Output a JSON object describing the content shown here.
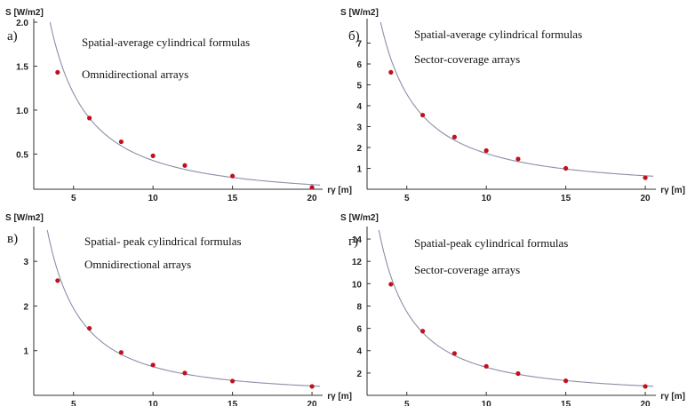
{
  "chart_data": [
    {
      "type": "line",
      "panel_label": "а)",
      "ylabel": "S [W/m2]",
      "xlabel": "rγ [m]",
      "annotations": [
        "Spatial-average cylindrical formulas",
        "Omnidirectional arrays"
      ],
      "xlim": [
        2.5,
        20.5
      ],
      "ylim": [
        0.1,
        2.0
      ],
      "xticks": [
        5,
        10,
        15,
        20
      ],
      "yticks": [
        0.5,
        1.0,
        1.5,
        2.0
      ],
      "ytick_labels": [
        "0.5",
        "1.0",
        "1.5",
        "2.0"
      ],
      "series": [
        {
          "x": [
            4,
            6,
            8,
            10,
            12,
            15,
            20
          ],
          "y": [
            1.43,
            0.91,
            0.64,
            0.48,
            0.37,
            0.25,
            0.12
          ]
        }
      ]
    },
    {
      "type": "line",
      "panel_label": "б)",
      "ylabel": "S [W/m2]",
      "xlabel": "rγ [m]",
      "annotations": [
        "Spatial-average cylindrical formulas",
        "Sector-coverage arrays"
      ],
      "xlim": [
        2.5,
        20.5
      ],
      "ylim": [
        0,
        8
      ],
      "xticks": [
        5,
        10,
        15,
        20
      ],
      "yticks": [
        1,
        2,
        3,
        4,
        5,
        6,
        7
      ],
      "ytick_labels": [
        "1",
        "2",
        "3",
        "4",
        "5",
        "6",
        "7"
      ],
      "series": [
        {
          "x": [
            4,
            6,
            8,
            10,
            12,
            15,
            20
          ],
          "y": [
            5.6,
            3.55,
            2.5,
            1.85,
            1.45,
            1.0,
            0.55
          ]
        }
      ]
    },
    {
      "type": "line",
      "panel_label": "в)",
      "ylabel": "S [W/m2]",
      "xlabel": "rγ [m]",
      "annotations": [
        "Spatial- peak cylindrical formulas",
        "Omnidirectional arrays"
      ],
      "xlim": [
        2.5,
        20.5
      ],
      "ylim": [
        0,
        3.7
      ],
      "xticks": [
        5,
        10,
        15,
        20
      ],
      "yticks": [
        1,
        2,
        3
      ],
      "ytick_labels": [
        "1",
        "2",
        "3"
      ],
      "series": [
        {
          "x": [
            4,
            6,
            8,
            10,
            12,
            15,
            20
          ],
          "y": [
            2.57,
            1.5,
            0.96,
            0.68,
            0.5,
            0.32,
            0.2
          ]
        }
      ]
    },
    {
      "type": "line",
      "panel_label": "г)",
      "ylabel": "S [W/m2]",
      "xlabel": "rγ [m]",
      "annotations": [
        "Spatial-peak cylindrical formulas",
        "Sector-coverage arrays"
      ],
      "xlim": [
        2.5,
        20.5
      ],
      "ylim": [
        0,
        14.8
      ],
      "xticks": [
        5,
        10,
        15,
        20
      ],
      "yticks": [
        2,
        4,
        6,
        8,
        10,
        12,
        14
      ],
      "ytick_labels": [
        "2",
        "4",
        "6",
        "8",
        "10",
        "12",
        "14"
      ],
      "series": [
        {
          "x": [
            4,
            6,
            8,
            10,
            12,
            15,
            20
          ],
          "y": [
            9.95,
            5.75,
            3.75,
            2.6,
            1.95,
            1.3,
            0.8
          ]
        }
      ]
    }
  ]
}
